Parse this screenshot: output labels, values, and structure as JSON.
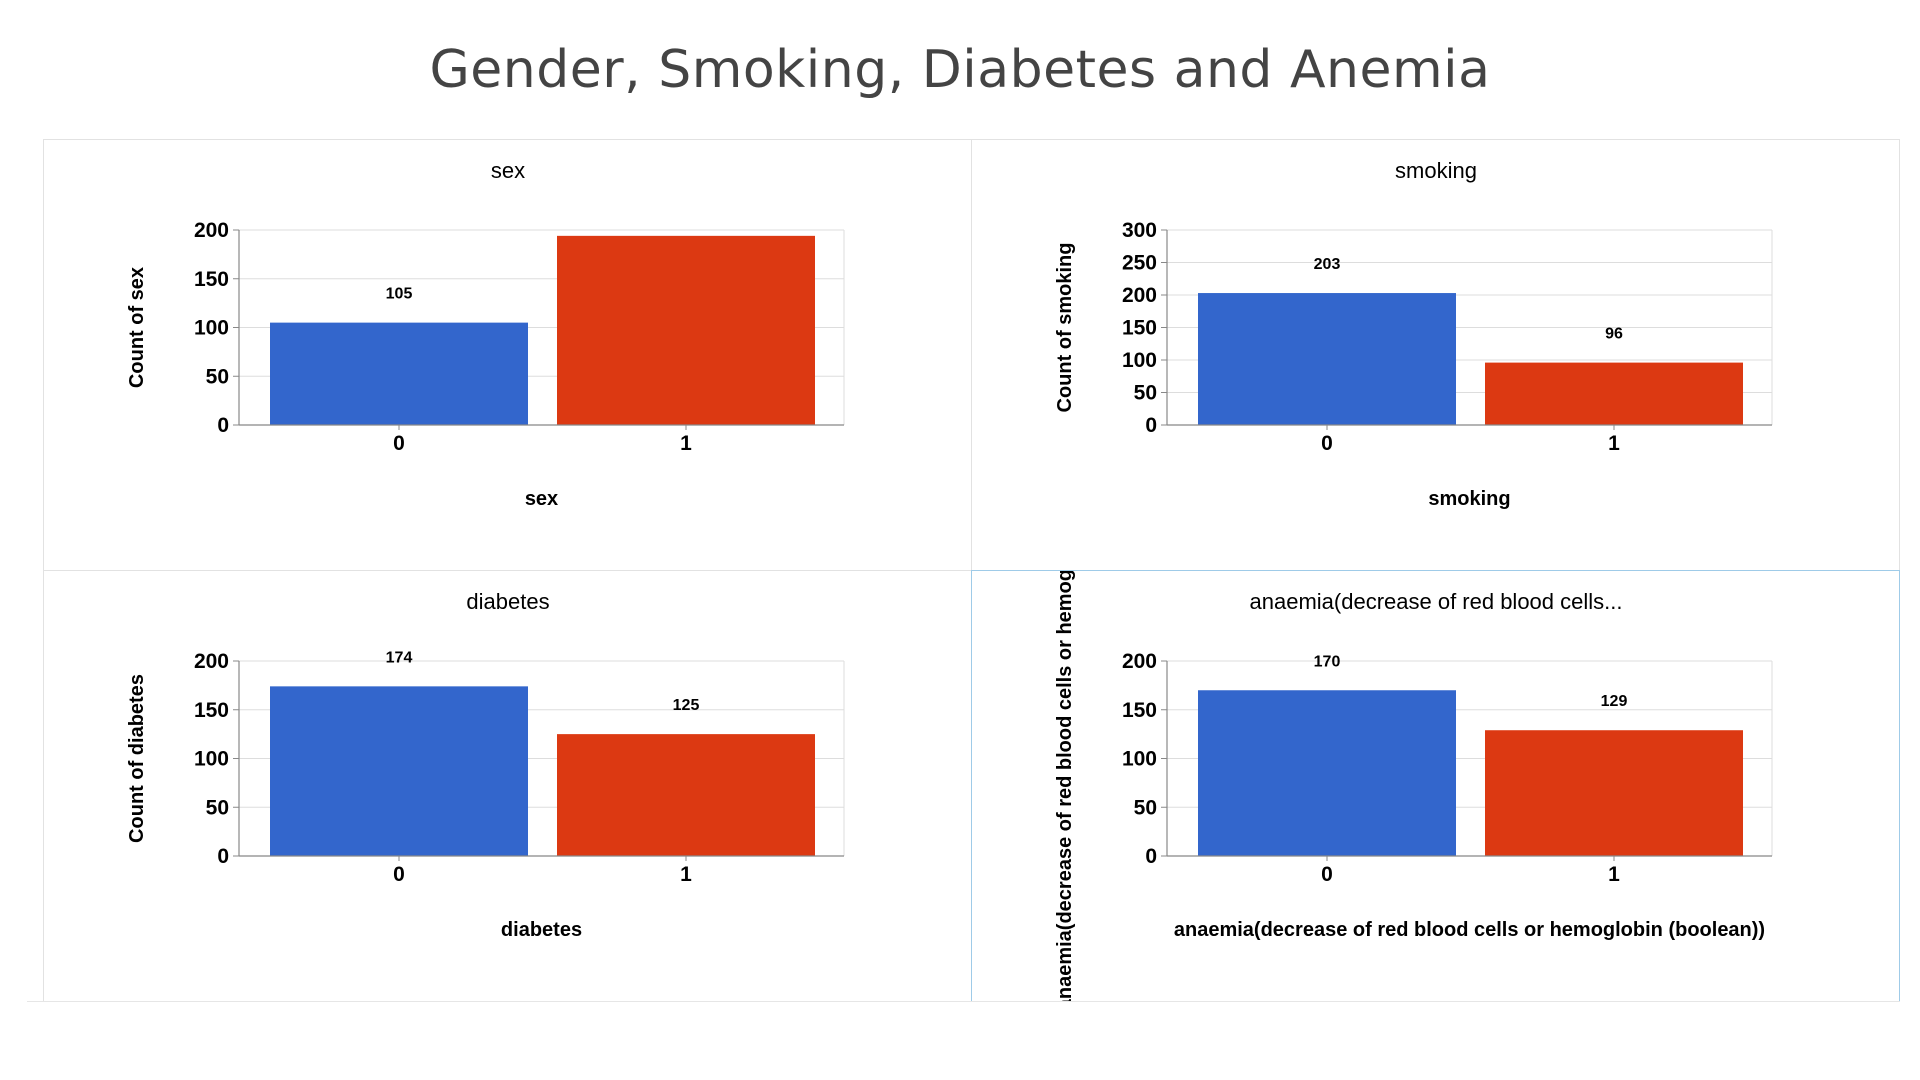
{
  "page": {
    "title": "Gender, Smoking, Diabetes and Anemia"
  },
  "colors": {
    "bar_0": "#3366cc",
    "bar_1": "#dc3912",
    "grid": "#dddddd",
    "axis": "#888888",
    "text": "#000000",
    "title": "#444444",
    "selected_border": "#9fcbe8"
  },
  "chart_data": [
    {
      "type": "bar",
      "title": "sex",
      "xlabel": "sex",
      "ylabel": "Count of sex",
      "categories": [
        "0",
        "1"
      ],
      "values": [
        105,
        194
      ],
      "value_labels": [
        "105",
        ""
      ],
      "yticks": [
        "0",
        "50",
        "100",
        "150",
        "200"
      ],
      "ylim": [
        0,
        200
      ],
      "grid": true,
      "legend": "none"
    },
    {
      "type": "bar",
      "title": "smoking",
      "xlabel": "smoking",
      "ylabel": "Count of smoking",
      "categories": [
        "0",
        "1"
      ],
      "values": [
        203,
        96
      ],
      "value_labels": [
        "203",
        "96"
      ],
      "yticks": [
        "0",
        "50",
        "100",
        "150",
        "200",
        "250",
        "300"
      ],
      "ylim": [
        0,
        300
      ],
      "grid": true,
      "legend": "none"
    },
    {
      "type": "bar",
      "title": "diabetes",
      "xlabel": "diabetes",
      "ylabel": "Count of diabetes",
      "categories": [
        "0",
        "1"
      ],
      "values": [
        174,
        125
      ],
      "value_labels": [
        "174",
        "125"
      ],
      "yticks": [
        "0",
        "50",
        "100",
        "150",
        "200"
      ],
      "ylim": [
        0,
        200
      ],
      "grid": true,
      "legend": "none"
    },
    {
      "type": "bar",
      "title": "anaemia(decrease of red blood cells...",
      "xlabel": "anaemia(decrease of red blood cells or hemoglobin (boolean))",
      "ylabel": "Count of anaemia(decrease of red blood cells or hemoglobin (boolean))",
      "categories": [
        "0",
        "1"
      ],
      "values": [
        170,
        129
      ],
      "value_labels": [
        "170",
        "129"
      ],
      "yticks": [
        "0",
        "50",
        "100",
        "150",
        "200"
      ],
      "ylim": [
        0,
        200
      ],
      "grid": true,
      "legend": "none",
      "selected": true
    }
  ]
}
